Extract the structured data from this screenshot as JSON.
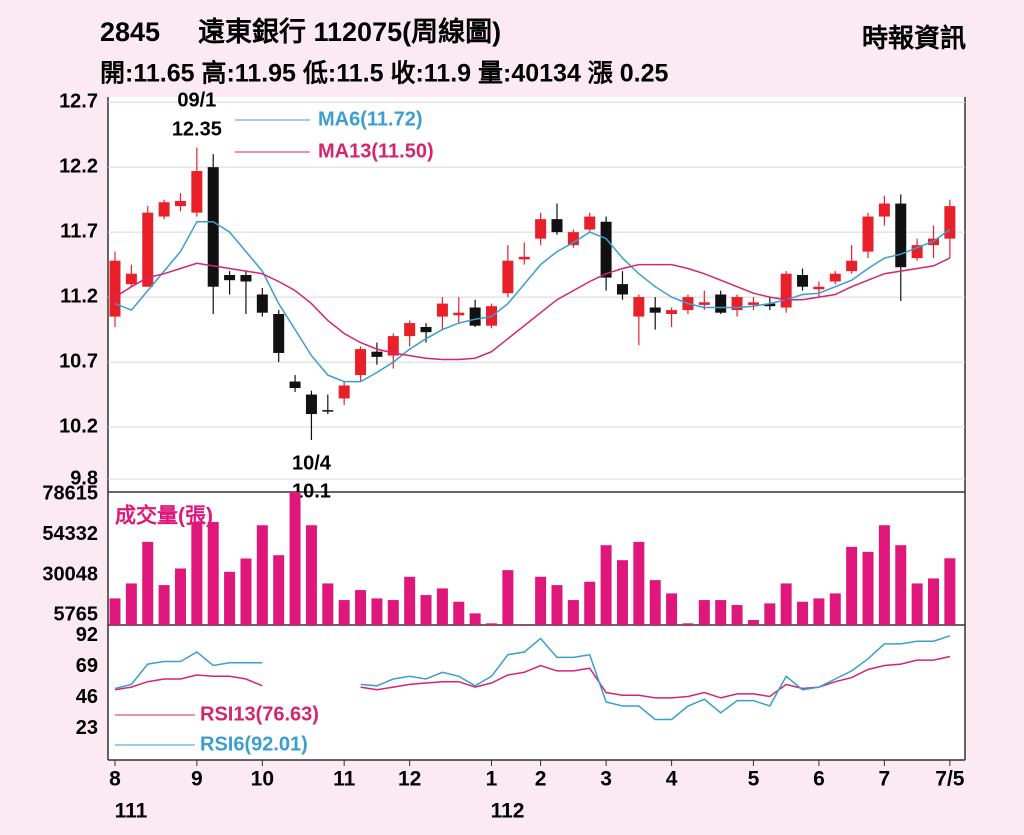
{
  "header": {
    "code": "2845",
    "name": "遠東銀行 112075(周線圖)",
    "source": "時報資訊",
    "quote": "開:11.65 高:11.95 低:11.5 收:11.9 量:40134 漲 0.25"
  },
  "chart_data": [
    {
      "type": "candlestick",
      "up_color": "#e8202a",
      "down_color": "#111111",
      "ylim": [
        9.7,
        12.74
      ],
      "yticks": [
        12.7,
        12.2,
        11.7,
        11.2,
        10.7,
        10.2,
        9.8
      ],
      "grid": true,
      "open": [
        11.05,
        11.3,
        11.28,
        11.82,
        11.9,
        11.85,
        12.2,
        11.37,
        11.37,
        11.22,
        11.07,
        10.55,
        10.45,
        10.33,
        10.42,
        10.6,
        10.78,
        10.75,
        10.9,
        10.97,
        11.05,
        11.06,
        11.12,
        10.98,
        11.23,
        11.49,
        11.65,
        11.8,
        11.6,
        11.72,
        11.78,
        11.3,
        11.05,
        11.12,
        11.07,
        11.1,
        11.14,
        11.22,
        11.1,
        11.14,
        11.15,
        11.12,
        11.37,
        11.26,
        11.32,
        11.4,
        11.55,
        11.82,
        11.92,
        11.5,
        11.6,
        11.65
      ],
      "high": [
        11.55,
        11.45,
        11.9,
        11.95,
        12.0,
        12.35,
        12.3,
        11.4,
        11.4,
        11.27,
        11.1,
        10.6,
        10.48,
        10.45,
        10.55,
        10.82,
        10.85,
        10.92,
        11.02,
        11.0,
        11.2,
        11.2,
        11.18,
        11.15,
        11.6,
        11.62,
        11.85,
        11.92,
        11.72,
        11.85,
        11.82,
        11.4,
        11.22,
        11.2,
        11.12,
        11.22,
        11.25,
        11.25,
        11.22,
        11.2,
        11.2,
        11.4,
        11.42,
        11.32,
        11.4,
        11.6,
        11.85,
        11.98,
        11.99,
        11.65,
        11.75,
        11.95
      ],
      "low": [
        10.97,
        11.28,
        11.28,
        11.8,
        11.86,
        11.82,
        11.07,
        11.22,
        11.07,
        11.05,
        10.7,
        10.47,
        10.1,
        10.3,
        10.37,
        10.55,
        10.68,
        10.65,
        10.82,
        10.85,
        10.95,
        11.0,
        10.97,
        10.96,
        11.2,
        11.45,
        11.6,
        11.68,
        11.58,
        11.7,
        11.25,
        11.18,
        10.83,
        10.95,
        10.97,
        11.07,
        11.1,
        11.07,
        11.05,
        11.1,
        11.1,
        11.08,
        11.25,
        11.2,
        11.3,
        11.38,
        11.5,
        11.75,
        11.17,
        11.48,
        11.5,
        11.5
      ],
      "close": [
        11.48,
        11.38,
        11.85,
        11.93,
        11.94,
        12.17,
        11.28,
        11.33,
        11.32,
        11.08,
        10.77,
        10.5,
        10.3,
        10.32,
        10.52,
        10.8,
        10.74,
        10.9,
        11.0,
        10.93,
        11.15,
        11.08,
        10.98,
        11.13,
        11.48,
        11.51,
        11.8,
        11.7,
        11.7,
        11.82,
        11.35,
        11.22,
        11.2,
        11.08,
        11.1,
        11.2,
        11.16,
        11.08,
        11.2,
        11.16,
        11.13,
        11.38,
        11.28,
        11.28,
        11.38,
        11.48,
        11.82,
        11.92,
        11.43,
        11.6,
        11.65,
        11.9
      ],
      "series": [
        {
          "name": "MA6(11.72)",
          "color": "#3a9fcf",
          "values": [
            11.15,
            11.1,
            11.25,
            11.4,
            11.55,
            11.78,
            11.78,
            11.7,
            11.55,
            11.4,
            11.15,
            10.95,
            10.75,
            10.6,
            10.55,
            10.55,
            10.62,
            10.7,
            10.8,
            10.88,
            10.95,
            11.0,
            11.03,
            11.05,
            11.15,
            11.3,
            11.45,
            11.55,
            11.62,
            11.7,
            11.65,
            11.5,
            11.38,
            11.28,
            11.2,
            11.15,
            11.12,
            11.12,
            11.12,
            11.13,
            11.15,
            11.18,
            11.22,
            11.23,
            11.28,
            11.33,
            11.42,
            11.5,
            11.53,
            11.58,
            11.63,
            11.72
          ]
        },
        {
          "name": "MA13(11.50)",
          "color": "#d6246e",
          "values": [
            11.2,
            11.28,
            11.35,
            11.38,
            11.42,
            11.46,
            11.44,
            11.42,
            11.4,
            11.38,
            11.32,
            11.25,
            11.15,
            11.02,
            10.92,
            10.85,
            10.8,
            10.77,
            10.75,
            10.73,
            10.72,
            10.72,
            10.73,
            10.78,
            10.88,
            10.98,
            11.08,
            11.18,
            11.25,
            11.32,
            11.38,
            11.42,
            11.45,
            11.45,
            11.45,
            11.42,
            11.38,
            11.33,
            11.28,
            11.23,
            11.2,
            11.18,
            11.18,
            11.2,
            11.22,
            11.28,
            11.33,
            11.38,
            11.4,
            11.42,
            11.44,
            11.5
          ]
        }
      ],
      "annotations": {
        "high_date": "09/1",
        "low_date": "10/4"
      }
    },
    {
      "type": "bar",
      "title": "成交量(張)",
      "color": "#e0177a",
      "ylim": [
        0,
        80000
      ],
      "yticks": [
        78615,
        54332,
        30048,
        5765
      ],
      "values": [
        16000,
        25000,
        50000,
        24000,
        34000,
        62000,
        62000,
        32000,
        40000,
        60000,
        42000,
        80000,
        60000,
        25000,
        15000,
        21000,
        16000,
        15000,
        29000,
        18000,
        22000,
        14000,
        7000,
        1000,
        33000,
        500,
        29000,
        24000,
        15000,
        26000,
        48000,
        39000,
        50000,
        27000,
        19000,
        1000,
        15000,
        15000,
        12000,
        3000,
        13000,
        25000,
        14000,
        16000,
        19000,
        47000,
        44000,
        60000,
        48000,
        25000,
        28000,
        40134
      ]
    },
    {
      "type": "line",
      "ylim": [
        0,
        100
      ],
      "yticks": [
        92,
        69,
        46,
        23
      ],
      "categories": [
        "8",
        null,
        null,
        null,
        null,
        "9",
        null,
        null,
        null,
        "10",
        null,
        null,
        null,
        null,
        "11",
        null,
        null,
        null,
        "12",
        null,
        null,
        null,
        null,
        "1",
        null,
        null,
        "2",
        null,
        null,
        null,
        "3",
        null,
        null,
        null,
        "4",
        null,
        null,
        null,
        null,
        "5",
        null,
        null,
        null,
        "6",
        null,
        null,
        null,
        "7",
        null,
        null,
        null,
        "7/5"
      ],
      "sublabels": [
        "111",
        null,
        null,
        null,
        null,
        null,
        null,
        null,
        null,
        null,
        null,
        null,
        null,
        null,
        null,
        null,
        null,
        null,
        null,
        null,
        null,
        null,
        null,
        "112",
        null,
        null,
        null,
        null,
        null,
        null,
        null,
        null,
        null,
        null,
        null,
        null,
        null,
        null,
        null,
        null,
        null,
        null,
        null,
        null,
        null,
        null,
        null,
        null,
        null,
        null,
        null,
        null
      ],
      "series": [
        {
          "name": "RSI13(76.63)",
          "color": "#d6246e",
          "values": [
            52,
            54,
            58,
            60,
            60,
            63,
            62,
            62,
            60,
            55,
            null,
            null,
            null,
            null,
            null,
            54,
            52,
            54,
            56,
            57,
            58,
            58,
            54,
            57,
            63,
            65,
            70,
            66,
            66,
            68,
            50,
            48,
            48,
            46,
            46,
            47,
            50,
            46,
            49,
            49,
            47,
            56,
            53,
            54,
            58,
            61,
            67,
            70,
            71,
            74,
            74,
            76.63
          ]
        },
        {
          "name": "RSI6(92.01)",
          "color": "#3a9fcf",
          "values": [
            53,
            56,
            71,
            73,
            73,
            80,
            70,
            72,
            72,
            72,
            null,
            null,
            null,
            null,
            null,
            56,
            55,
            60,
            62,
            60,
            65,
            62,
            55,
            62,
            78,
            80,
            90,
            76,
            76,
            78,
            43,
            40,
            40,
            30,
            30,
            40,
            45,
            35,
            44,
            44,
            40,
            62,
            52,
            54,
            60,
            66,
            75,
            86,
            86,
            88,
            88,
            92.01
          ]
        }
      ]
    }
  ]
}
